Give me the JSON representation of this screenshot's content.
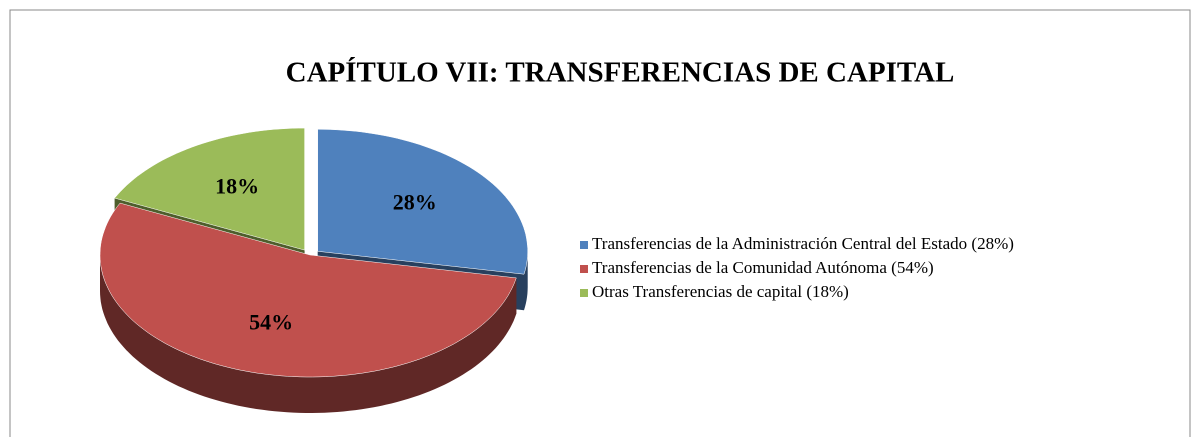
{
  "chart_data": {
    "type": "pie",
    "title": "CAPÍTULO VII: TRANSFERENCIAS DE CAPITAL",
    "categories": [
      "Transferencias de la Administración Central del Estado (28%)",
      "Transferencias de la Comunidad Autónoma (54%)",
      "Otras Transferencias  de capital (18%)"
    ],
    "values": [
      28,
      54,
      18
    ],
    "value_labels": [
      "28%",
      "54%",
      "18%"
    ],
    "colors": [
      "#4f81bd",
      "#c0504d",
      "#9bbb59"
    ],
    "legend": "right"
  }
}
